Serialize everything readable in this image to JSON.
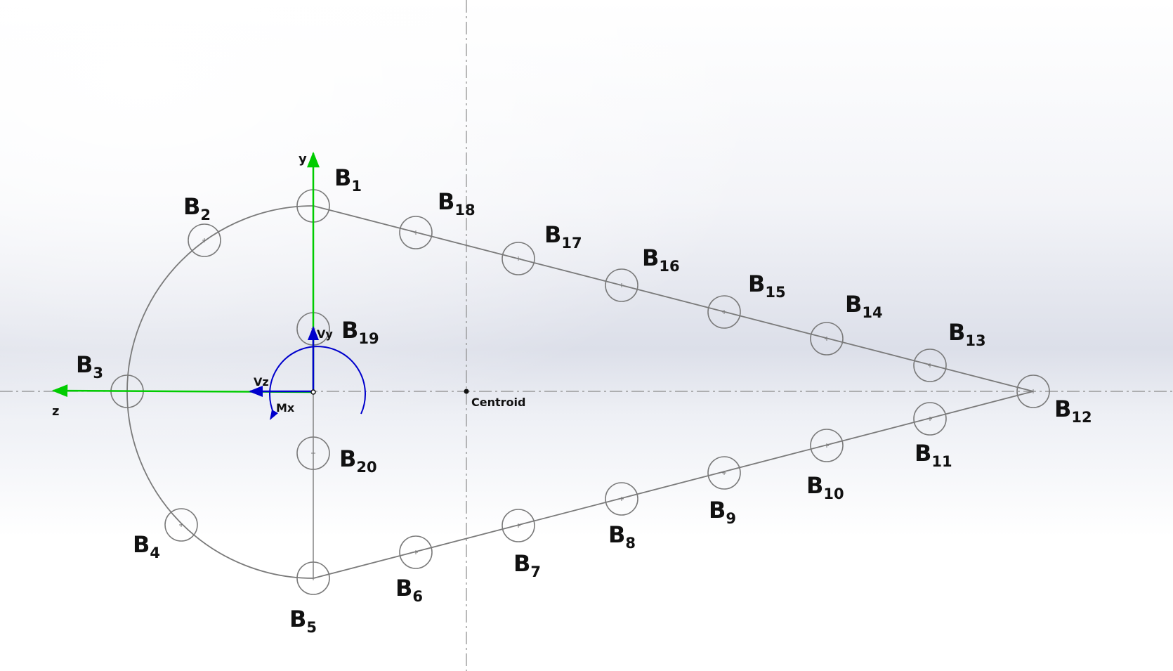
{
  "axes": {
    "y_label": "y",
    "z_label": "z",
    "y_color": "#00cc00",
    "z_color": "#00cc00"
  },
  "loads": {
    "vy_label": "Vy",
    "vz_label": "Vz",
    "mx_label": "Mx",
    "color": "#0000cc"
  },
  "centroid": {
    "label": "Centroid"
  },
  "booms": [
    {
      "id": "1",
      "main": "B",
      "sub": "1"
    },
    {
      "id": "2",
      "main": "B",
      "sub": "2"
    },
    {
      "id": "3",
      "main": "B",
      "sub": "3"
    },
    {
      "id": "4",
      "main": "B",
      "sub": "4"
    },
    {
      "id": "5",
      "main": "B",
      "sub": "5"
    },
    {
      "id": "6",
      "main": "B",
      "sub": "6"
    },
    {
      "id": "7",
      "main": "B",
      "sub": "7"
    },
    {
      "id": "8",
      "main": "B",
      "sub": "8"
    },
    {
      "id": "9",
      "main": "B",
      "sub": "9"
    },
    {
      "id": "10",
      "main": "B",
      "sub": "10"
    },
    {
      "id": "11",
      "main": "B",
      "sub": "11"
    },
    {
      "id": "12",
      "main": "B",
      "sub": "12"
    },
    {
      "id": "13",
      "main": "B",
      "sub": "13"
    },
    {
      "id": "14",
      "main": "B",
      "sub": "14"
    },
    {
      "id": "15",
      "main": "B",
      "sub": "15"
    },
    {
      "id": "16",
      "main": "B",
      "sub": "16"
    },
    {
      "id": "17",
      "main": "B",
      "sub": "17"
    },
    {
      "id": "18",
      "main": "B",
      "sub": "18"
    },
    {
      "id": "19",
      "main": "B",
      "sub": "19"
    },
    {
      "id": "20",
      "main": "B",
      "sub": "20"
    }
  ],
  "colors": {
    "structure": "#7a7a7a",
    "centerline": "#8a8a8a"
  }
}
